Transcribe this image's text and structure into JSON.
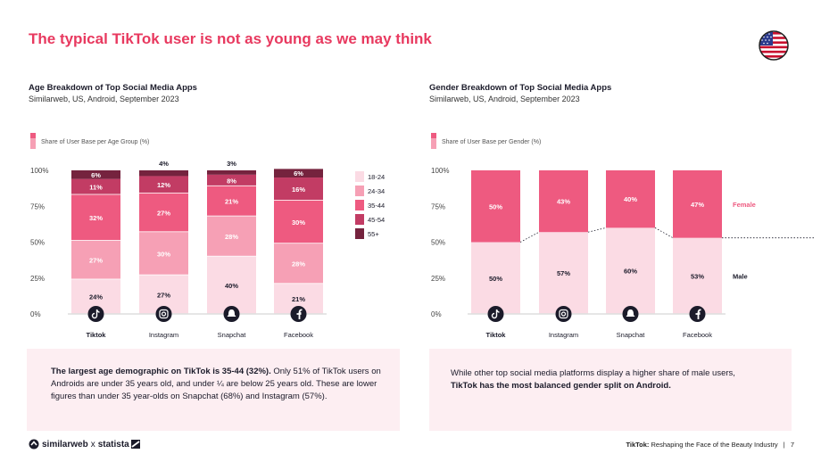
{
  "page": {
    "title": "The typical TikTok user is not as young as we may think",
    "flag": "us-flag-icon",
    "page_number": "7"
  },
  "footer": {
    "brand_a": "similarweb",
    "brand_sep": "x",
    "brand_b": "statista",
    "report_bold": "TikTok:",
    "report_rest": "Reshaping the Face of the Beauty Industry",
    "divider": "|"
  },
  "age_chart": {
    "title": "Age Breakdown of Top Social Media Apps",
    "source": "Similarweb, US, Android, September 2023",
    "tag": "Share of User Base per Age Group (%)",
    "summary_bold": "The largest age demographic on TikTok is 35-44 (32%).",
    "summary_rest": " Only 51% of TikTok users on Androids are under 35 years old, and under ¼ are below 25 years old. These are lower figures than under 35 year-olds on Snapchat (68%) and Instagram (57%)."
  },
  "gender_chart": {
    "title": "Gender Breakdown of Top Social Media Apps",
    "source": "Similarweb, US, Android, September 2023",
    "tag": "Share of User Base per Gender (%)",
    "summary_rest": "While other top social media platforms display a higher share of male users,",
    "summary_bold": "TikTok has the most balanced gender split on Android."
  },
  "chart_data": [
    {
      "type": "bar",
      "stacked": true,
      "title": "Age Breakdown of Top Social Media Apps",
      "ylabel": "Share of User Base per Age Group (%)",
      "ylim": [
        0,
        100
      ],
      "yticks": [
        "0%",
        "25%",
        "50%",
        "75%",
        "100%"
      ],
      "categories": [
        "Tiktok",
        "Instagram",
        "Snapchat",
        "Facebook"
      ],
      "icons": [
        "tiktok-icon",
        "instagram-icon",
        "snapchat-icon",
        "facebook-icon"
      ],
      "legend_position": "right",
      "series": [
        {
          "name": "18-24",
          "color": "#fbdbe4",
          "label_color": "#1b1b2a",
          "values": [
            24,
            27,
            40,
            21
          ]
        },
        {
          "name": "24-34",
          "color": "#f6a0b5",
          "label_color": "#ffffff",
          "values": [
            27,
            30,
            28,
            28
          ]
        },
        {
          "name": "35-44",
          "color": "#ee5a80",
          "label_color": "#ffffff",
          "values": [
            32,
            27,
            21,
            30
          ]
        },
        {
          "name": "45-54",
          "color": "#c23c64",
          "label_color": "#ffffff",
          "values": [
            11,
            12,
            8,
            16
          ]
        },
        {
          "name": "55+",
          "color": "#75233e",
          "label_color": "#ffffff",
          "values": [
            6,
            4,
            3,
            6
          ]
        }
      ]
    },
    {
      "type": "bar",
      "stacked": true,
      "title": "Gender Breakdown of Top Social Media Apps",
      "ylabel": "Share of User Base per Gender (%)",
      "ylim": [
        0,
        100
      ],
      "yticks": [
        "0%",
        "25%",
        "50%",
        "75%",
        "100%"
      ],
      "categories": [
        "Tiktok",
        "Instagram",
        "Snapchat",
        "Facebook"
      ],
      "icons": [
        "tiktok-icon",
        "instagram-icon",
        "snapchat-icon",
        "facebook-icon"
      ],
      "legend_position": "right",
      "series": [
        {
          "name": "Male",
          "color": "#fbdbe4",
          "label_color": "#1b1b2a",
          "values": [
            50,
            57,
            60,
            53
          ]
        },
        {
          "name": "Female",
          "color": "#ee5a80",
          "label_color": "#ffffff",
          "values": [
            50,
            43,
            40,
            47
          ]
        }
      ]
    }
  ]
}
